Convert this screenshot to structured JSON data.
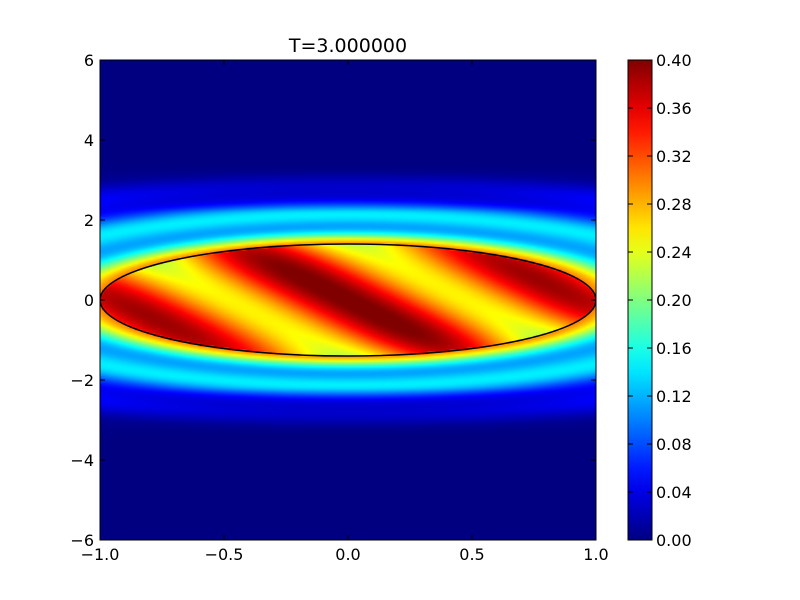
{
  "chart_data": {
    "type": "heatmap",
    "title": "T=3.000000",
    "xlabel": "",
    "ylabel": "",
    "xlim": [
      -1.0,
      1.0
    ],
    "ylim": [
      -6,
      6
    ],
    "x_ticks": [
      -1.0,
      -0.5,
      0.0,
      0.5,
      1.0
    ],
    "x_tick_labels": [
      "−1.0",
      "−0.5",
      "0.0",
      "0.5",
      "1.0"
    ],
    "y_ticks": [
      -6,
      -4,
      -2,
      0,
      2,
      4,
      6
    ],
    "y_tick_labels": [
      "−6",
      "−4",
      "−2",
      "0",
      "2",
      "4",
      "6"
    ],
    "colormap": "jet",
    "color_range": [
      0.0,
      0.4
    ],
    "colorbar_ticks": [
      0.0,
      0.04,
      0.08,
      0.12,
      0.16,
      0.2,
      0.24,
      0.28,
      0.32,
      0.36,
      0.4
    ],
    "colorbar_tick_labels": [
      "0.00",
      "0.04",
      "0.08",
      "0.12",
      "0.16",
      "0.20",
      "0.24",
      "0.28",
      "0.32",
      "0.36",
      "0.40"
    ],
    "boundary_ellipse": {
      "center": [
        0.0,
        0.0
      ],
      "semi_axis_x": 1.0,
      "semi_axis_y": 1.4,
      "color": "#000000"
    },
    "field_pattern": "diagonal high-intensity bands (≈0.36–0.40) inside the ellipse, concentric ring bands (≈0.16–0.28) just outside its boundary, decaying to ≈0 beyond |y|≈3"
  }
}
